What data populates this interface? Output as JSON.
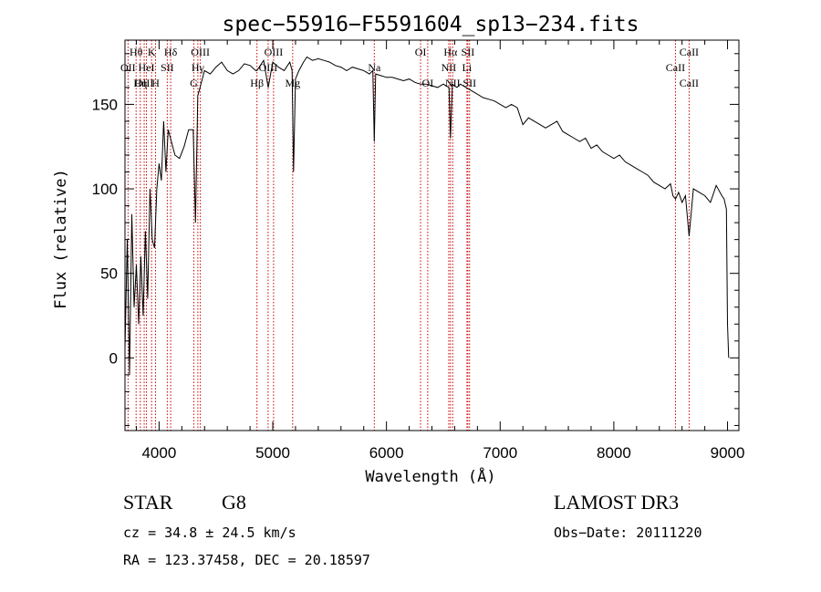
{
  "title": "spec−55916−F5591604_sp13−234.fits",
  "chart_data": {
    "type": "line",
    "title": "spec−55916−F5591604_sp13−234.fits",
    "xlabel": "Wavelength (Å)",
    "ylabel": "Flux (relative)",
    "xlim": [
      3700,
      9100
    ],
    "ylim": [
      -43,
      188
    ],
    "x_ticks": [
      4000,
      5000,
      6000,
      7000,
      8000,
      9000
    ],
    "y_ticks": [
      0,
      50,
      100,
      150
    ],
    "series": [
      {
        "name": "flux",
        "x": [
          3700,
          3720,
          3740,
          3760,
          3780,
          3800,
          3820,
          3840,
          3860,
          3880,
          3900,
          3920,
          3940,
          3960,
          3980,
          4000,
          4020,
          4040,
          4060,
          4080,
          4100,
          4140,
          4180,
          4220,
          4260,
          4300,
          4320,
          4340,
          4360,
          4400,
          4450,
          4500,
          4550,
          4600,
          4650,
          4700,
          4750,
          4800,
          4850,
          4861,
          4880,
          4920,
          4960,
          5000,
          5050,
          5100,
          5150,
          5170,
          5183,
          5200,
          5230,
          5270,
          5300,
          5350,
          5400,
          5450,
          5500,
          5550,
          5600,
          5650,
          5700,
          5750,
          5800,
          5850,
          5880,
          5893,
          5905,
          5950,
          6000,
          6050,
          6100,
          6150,
          6200,
          6250,
          6300,
          6350,
          6400,
          6450,
          6500,
          6550,
          6563,
          6580,
          6620,
          6650,
          6700,
          6750,
          6800,
          6850,
          6900,
          6950,
          7000,
          7050,
          7100,
          7150,
          7200,
          7250,
          7300,
          7350,
          7400,
          7450,
          7500,
          7550,
          7600,
          7650,
          7700,
          7750,
          7800,
          7850,
          7900,
          7950,
          8000,
          8050,
          8100,
          8150,
          8200,
          8250,
          8300,
          8350,
          8400,
          8450,
          8498,
          8520,
          8542,
          8570,
          8600,
          8630,
          8662,
          8700,
          8750,
          8800,
          8850,
          8900,
          8950,
          8970,
          8990,
          9000,
          9010
        ],
        "y": [
          5,
          70,
          -10,
          85,
          30,
          55,
          20,
          60,
          25,
          75,
          35,
          100,
          70,
          65,
          100,
          115,
          105,
          140,
          110,
          135,
          130,
          120,
          118,
          125,
          135,
          135,
          80,
          155,
          160,
          170,
          168,
          172,
          175,
          170,
          168,
          170,
          174,
          173,
          170,
          170,
          172,
          176,
          160,
          175,
          172,
          170,
          175,
          170,
          110,
          165,
          170,
          175,
          178,
          176,
          177,
          176,
          175,
          173,
          172,
          170,
          172,
          171,
          170,
          168,
          170,
          128,
          168,
          167,
          166,
          166,
          165,
          164,
          165,
          163,
          162,
          162,
          161,
          160,
          162,
          160,
          130,
          162,
          160,
          162,
          160,
          158,
          156,
          154,
          153,
          152,
          150,
          148,
          150,
          148,
          138,
          142,
          140,
          138,
          136,
          138,
          140,
          134,
          132,
          130,
          128,
          130,
          124,
          126,
          122,
          120,
          118,
          120,
          116,
          114,
          112,
          110,
          108,
          104,
          102,
          100,
          103,
          96,
          94,
          98,
          92,
          96,
          72,
          100,
          98,
          96,
          92,
          102,
          96,
          94,
          88,
          20,
          0
        ]
      }
    ],
    "spectral_lines": [
      {
        "label": "Hθ",
        "x": 3798,
        "row": 0
      },
      {
        "label": "OII",
        "x": 3727,
        "row": 1
      },
      {
        "label": "OIII",
        "x": 3869,
        "row": 2
      },
      {
        "label": "K",
        "x": 3934,
        "row": 0
      },
      {
        "label": "HeI",
        "x": 3889,
        "row": 1
      },
      {
        "label": "Hη",
        "x": 3835,
        "row": 2
      },
      {
        "label": "Hδ",
        "x": 4102,
        "row": 0
      },
      {
        "label": "SII",
        "x": 4072,
        "row": 1
      },
      {
        "label": "H",
        "x": 3969,
        "row": 2
      },
      {
        "label": "OIII",
        "x": 4363,
        "row": 0
      },
      {
        "label": "Hγ",
        "x": 4341,
        "row": 1
      },
      {
        "label": "G",
        "x": 4305,
        "row": 2
      },
      {
        "label": "OIII",
        "x": 5007,
        "row": 0
      },
      {
        "label": "OIII",
        "x": 4959,
        "row": 1
      },
      {
        "label": "Hβ",
        "x": 4861,
        "row": 2
      },
      {
        "label": "Mg",
        "x": 5175,
        "row": 2
      },
      {
        "label": "Na",
        "x": 5893,
        "row": 1
      },
      {
        "label": "OI",
        "x": 6300,
        "row": 0
      },
      {
        "label": "OI",
        "x": 6363,
        "row": 2
      },
      {
        "label": "Hα",
        "x": 6563,
        "row": 0
      },
      {
        "label": "NII",
        "x": 6548,
        "row": 1
      },
      {
        "label": "NII",
        "x": 6583,
        "row": 2
      },
      {
        "label": "SII",
        "x": 6716,
        "row": 0
      },
      {
        "label": "Li",
        "x": 6708,
        "row": 1
      },
      {
        "label": "SII",
        "x": 6731,
        "row": 2
      },
      {
        "label": "CaII",
        "x": 8662,
        "row": 0
      },
      {
        "label": "CaII",
        "x": 8542,
        "row": 1
      },
      {
        "label": "CaII",
        "x": 8662,
        "row": 2
      }
    ]
  },
  "info": {
    "class_label": "STAR",
    "subclass": "G8",
    "survey": "LAMOST DR3",
    "redshift": "cz = 34.8 ± 24.5 km/s",
    "obs_date": "Obs−Date: 20111220",
    "coords": "RA = 123.37458, DEC =  20.18597"
  },
  "colors": {
    "spectrum": "#000000",
    "line_marker": "#cc0000",
    "axis": "#000000"
  }
}
